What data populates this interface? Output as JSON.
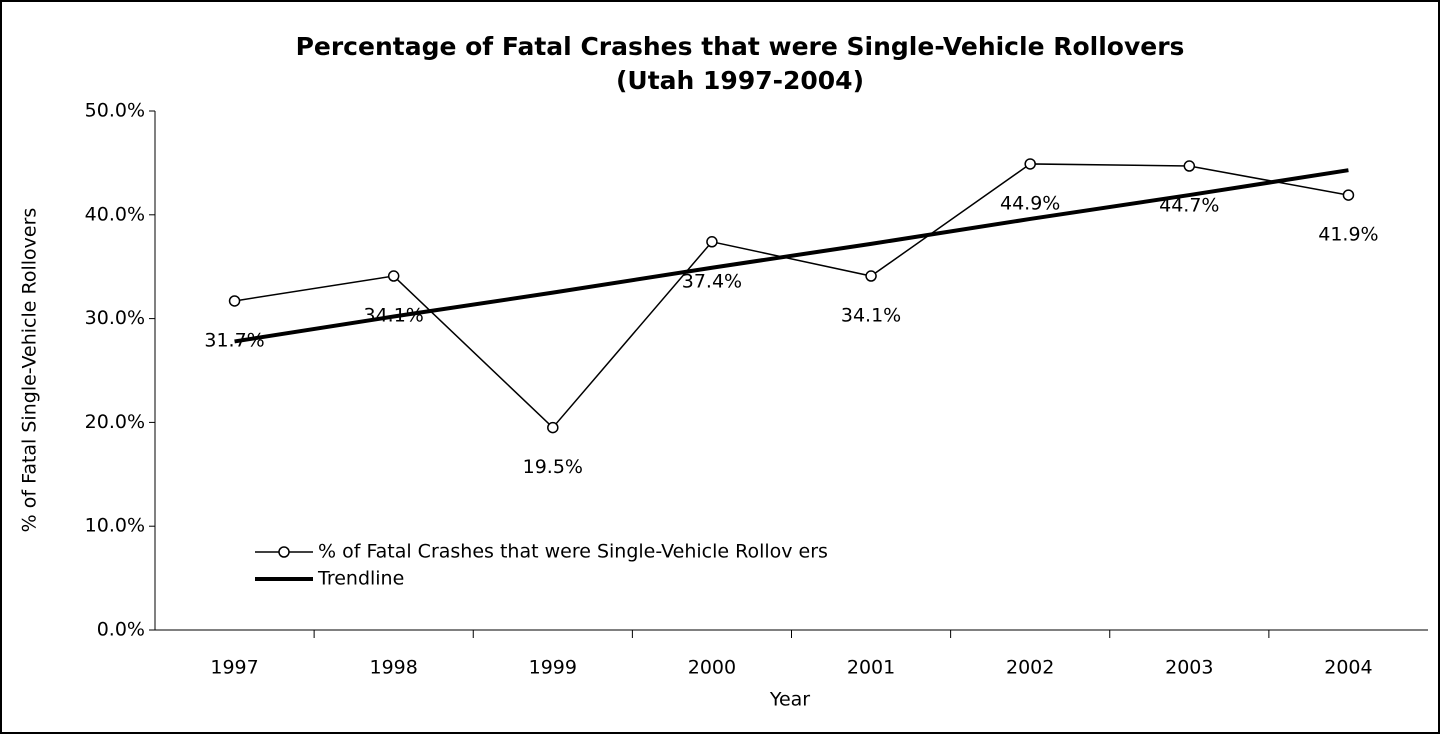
{
  "chart_data": {
    "type": "line",
    "title": "Percentage of Fatal Crashes that were Single-Vehicle Rollovers",
    "subtitle": "(Utah 1997-2004)",
    "x_label": "Year",
    "y_label": "% of Fatal Single-Vehicle Rollovers",
    "categories": [
      "1997",
      "1998",
      "1999",
      "2000",
      "2001",
      "2002",
      "2003",
      "2004"
    ],
    "series": [
      {
        "name": "% of Fatal Crashes that were Single-Vehicle Rollov ers",
        "color": "#000000",
        "markers": true,
        "width": 1.5,
        "values": [
          31.7,
          34.1,
          19.5,
          37.4,
          34.1,
          44.9,
          44.7,
          41.9
        ],
        "value_labels": [
          "31.7%",
          "34.1%",
          "19.5%",
          "37.4%",
          "34.1%",
          "44.9%",
          "44.7%",
          "41.9%"
        ]
      },
      {
        "name": "Trendline",
        "color": "#000000",
        "markers": false,
        "width": 4,
        "values": [
          27.8,
          30.2,
          32.5,
          34.9,
          37.2,
          39.6,
          41.9,
          44.3
        ]
      }
    ],
    "ylim": [
      0,
      50
    ],
    "yticks": [
      {
        "value": 0,
        "label": "0.0%"
      },
      {
        "value": 10,
        "label": "10.0%"
      },
      {
        "value": 20,
        "label": "20.0%"
      },
      {
        "value": 30,
        "label": "30.0%"
      },
      {
        "value": 40,
        "label": "40.0%"
      },
      {
        "value": 50,
        "label": "50.0%"
      }
    ],
    "grid": false,
    "legend": "lower-left"
  }
}
